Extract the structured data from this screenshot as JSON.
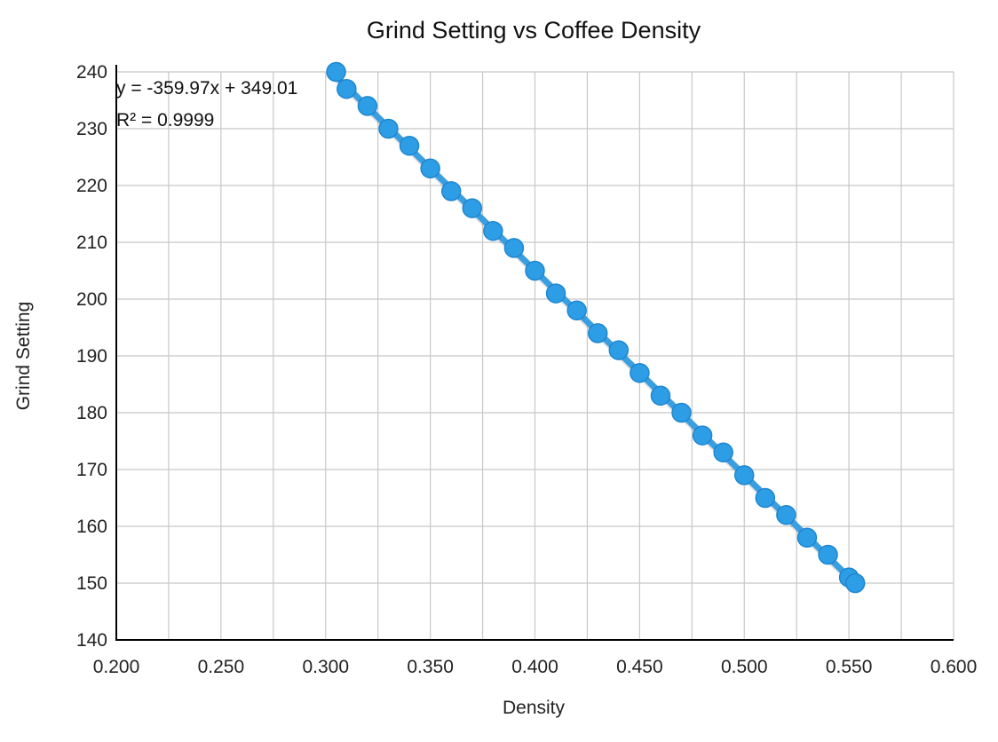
{
  "chart_data": {
    "type": "scatter",
    "title": "Grind Setting vs Coffee Density",
    "xlabel": "Density",
    "ylabel": "Grind Setting",
    "xlim": [
      0.2,
      0.6
    ],
    "ylim": [
      140,
      240
    ],
    "x_ticks": [
      "0.200",
      "0.250",
      "0.300",
      "0.350",
      "0.400",
      "0.450",
      "0.500",
      "0.550",
      "0.600"
    ],
    "y_ticks": [
      "140",
      "150",
      "160",
      "170",
      "180",
      "190",
      "200",
      "210",
      "220",
      "230",
      "240"
    ],
    "grid": true,
    "trendline": {
      "type": "linear",
      "equation": "y = -359.97x + 349.01",
      "r_squared": "R² = 0.9999",
      "slope": -359.97,
      "intercept": 349.01
    },
    "series": [
      {
        "color": "#2d9ee6",
        "x": [
          0.305,
          0.31,
          0.32,
          0.33,
          0.34,
          0.35,
          0.36,
          0.37,
          0.38,
          0.39,
          0.4,
          0.41,
          0.42,
          0.43,
          0.44,
          0.45,
          0.46,
          0.47,
          0.48,
          0.49,
          0.5,
          0.51,
          0.52,
          0.53,
          0.54,
          0.55,
          0.553
        ],
        "y": [
          240,
          237,
          234,
          230,
          227,
          223,
          219,
          216,
          212,
          209,
          205,
          201,
          198,
          194,
          191,
          187,
          183,
          180,
          176,
          173,
          169,
          165,
          162,
          158,
          155,
          151,
          150
        ]
      }
    ]
  }
}
